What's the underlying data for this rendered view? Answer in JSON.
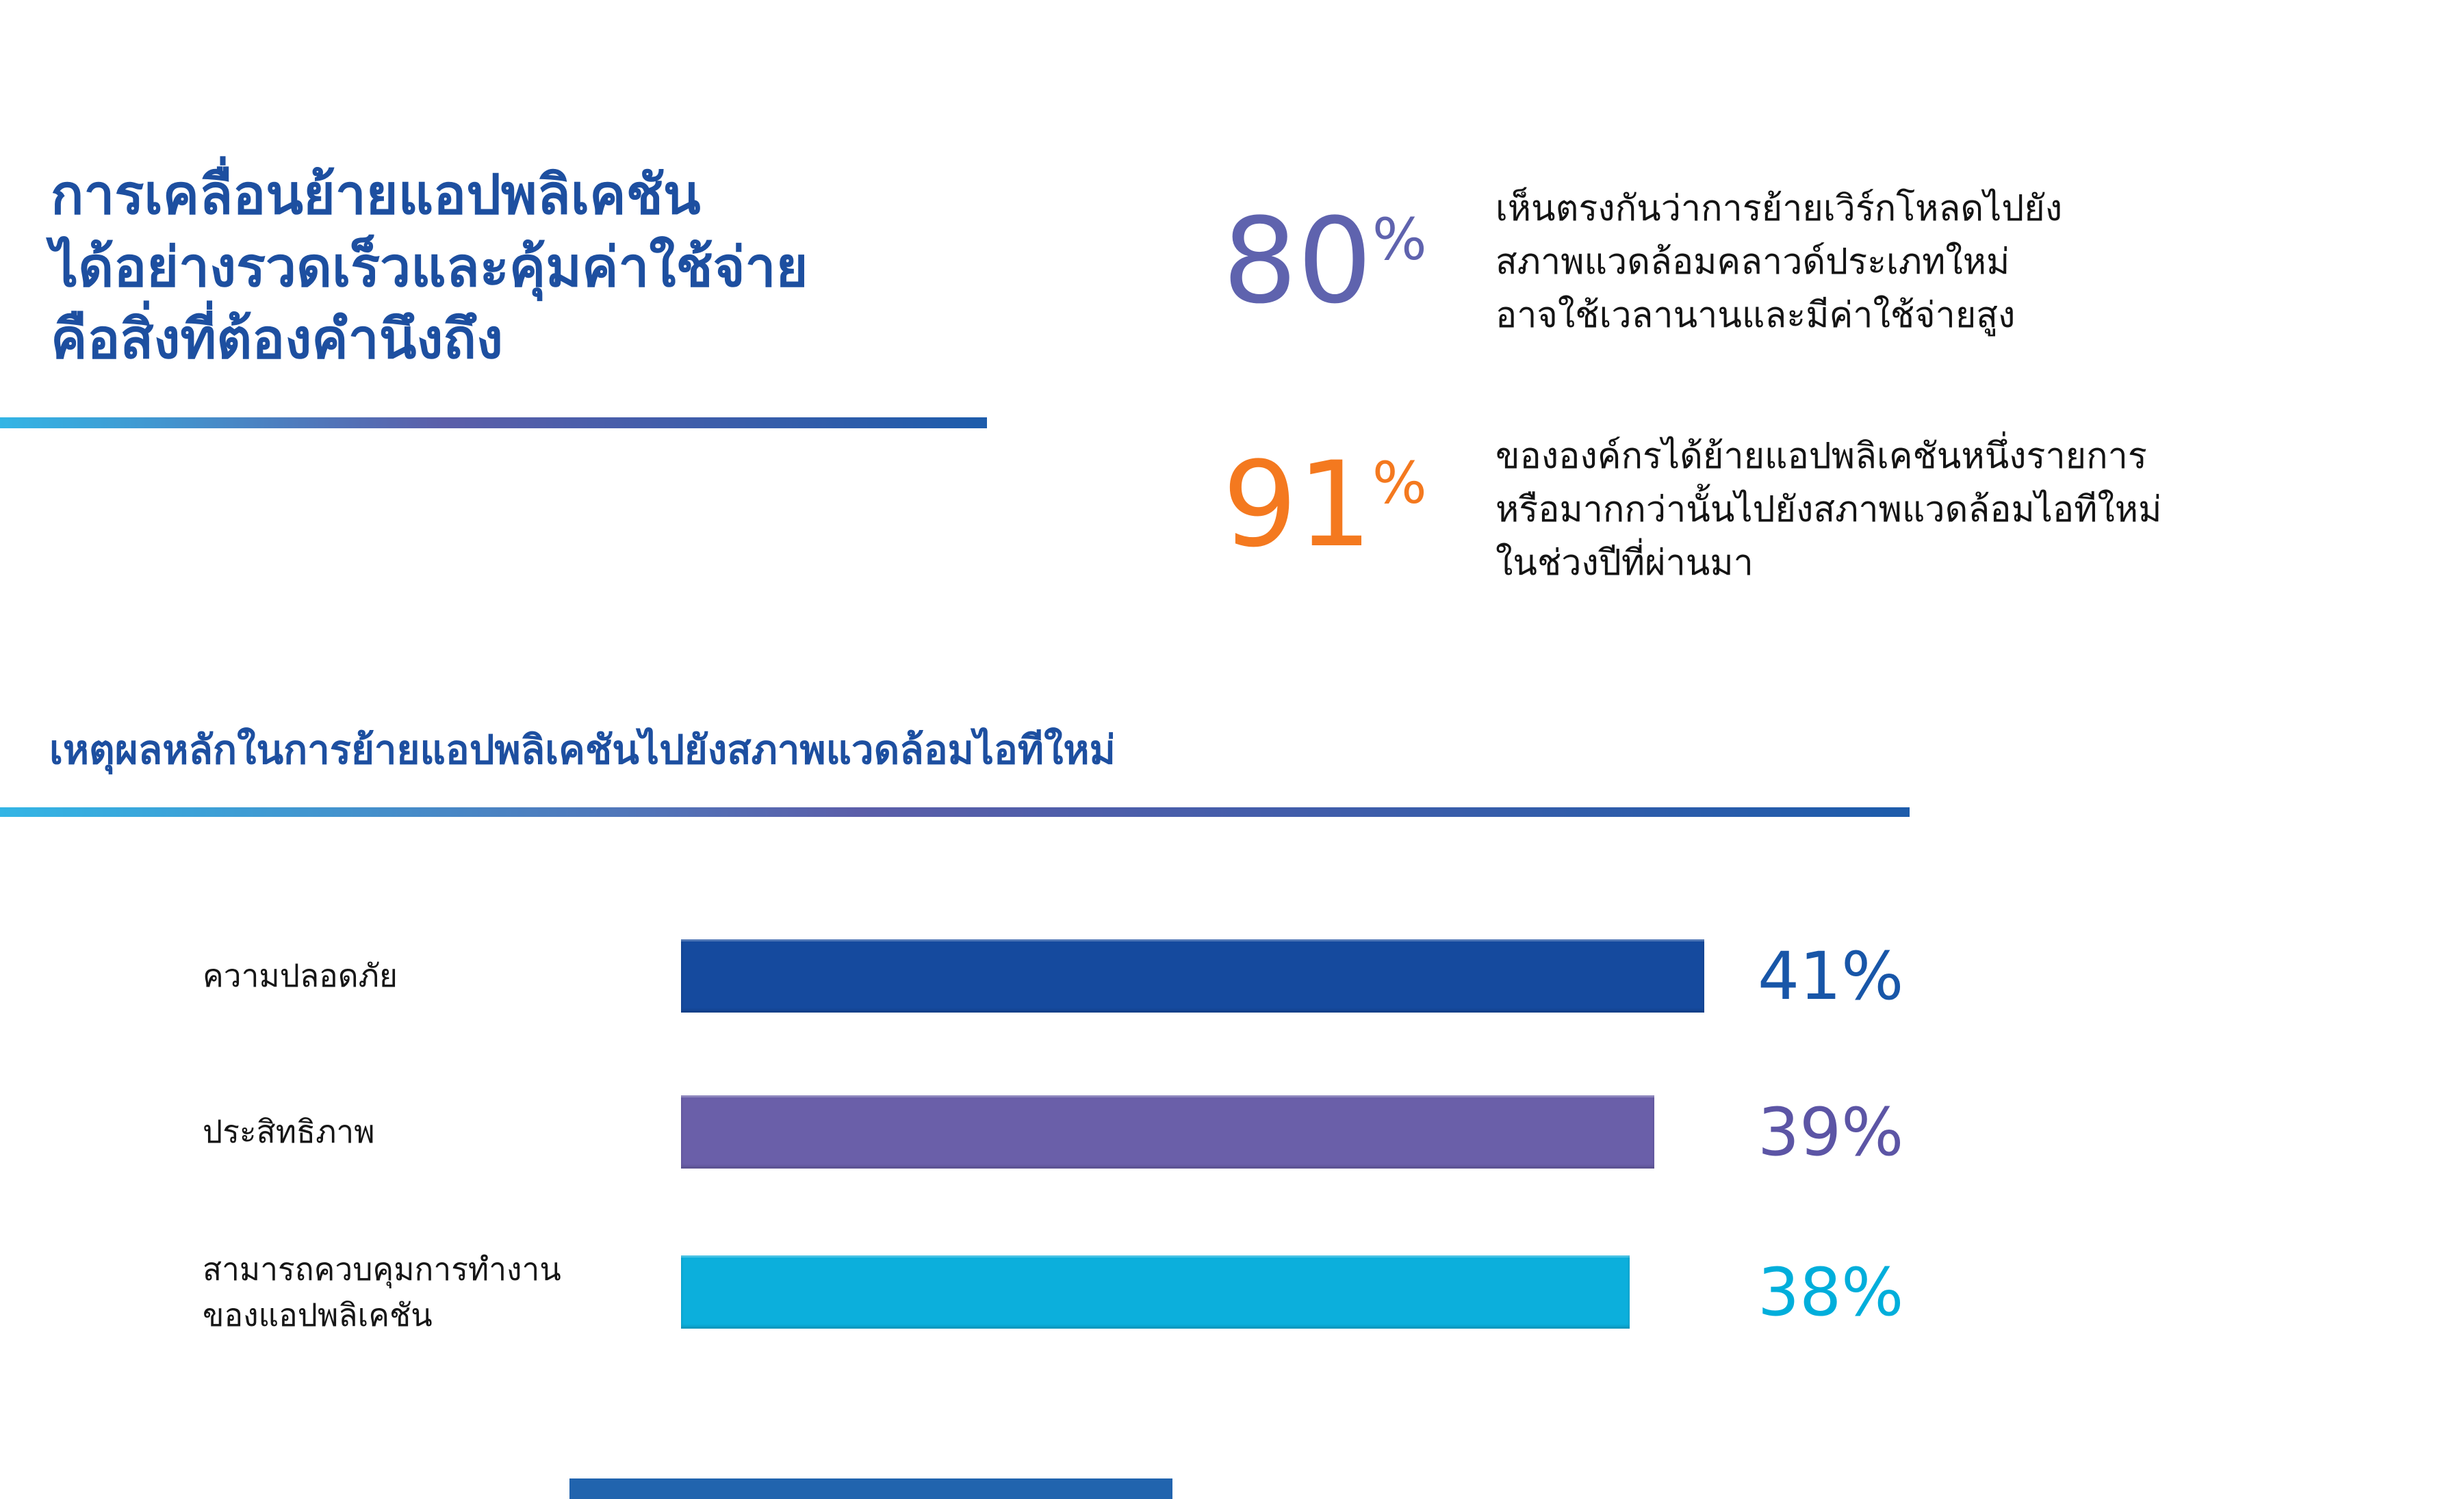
{
  "title": {
    "lines": [
      "การเคลื่อนย้ายแอปพลิเคชัน",
      "ได้อย่างรวดเร็วและคุ้มค่าใช้จ่าย",
      "คือสิ่งที่ต้องคำนึงถึง"
    ],
    "color": "#1d4fa0"
  },
  "stats": [
    {
      "value": "80",
      "unit": "%",
      "color": "#5f63ae",
      "lines": [
        "เห็นตรงกันว่าการย้ายเวิร์กโหลดไปยัง",
        "สภาพแวดล้อมคลาวด์ประเภทใหม่",
        "อาจใช้เวลานานและมีค่าใช้จ่ายสูง"
      ]
    },
    {
      "value": "91",
      "unit": "%",
      "color": "#f4791f",
      "lines": [
        "ขององค์กรได้ย้ายแอปพลิเคชันหนึ่งรายการ",
        "หรือมากกว่านั้นไปยังสภาพแวดล้อมไอทีใหม่",
        "ในช่วงปีที่ผ่านมา"
      ]
    }
  ],
  "section": {
    "heading": "เหตุผลหลักในการย้ายแอปพลิเคชันไปยังสภาพแวดล้อมไอทีใหม่",
    "color": "#1d4fa0"
  },
  "chart_data": {
    "type": "bar",
    "orientation": "horizontal",
    "title": "เหตุผลหลักในการย้ายแอปพลิเคชันไปยังสภาพแวดล้อมไอทีใหม่",
    "categories": [
      "ความปลอดภัย",
      "ประสิทธิภาพ",
      "สามารถควบคุมการทำงานของแอปพลิเคชัน"
    ],
    "category_lines": [
      [
        "ความปลอดภัย"
      ],
      [
        "ประสิทธิภาพ"
      ],
      [
        "สามารถควบคุมการทำงาน",
        "ของแอปพลิเคชัน"
      ]
    ],
    "values": [
      41,
      39,
      38
    ],
    "value_labels": [
      "41%",
      "39%",
      "38%"
    ],
    "bar_colors": [
      "#154a9e",
      "#6a5fa9",
      "#0cafdc"
    ],
    "value_colors": [
      "#1856a8",
      "#5c55a5",
      "#00aedb"
    ],
    "xlim": [
      0,
      41
    ],
    "grid": false,
    "legend": false
  },
  "decor": {
    "divider_gradient": [
      "#33b5e5",
      "#5b5ea9",
      "#1d5cab"
    ],
    "bottom_bar_color": "#2164ae"
  }
}
